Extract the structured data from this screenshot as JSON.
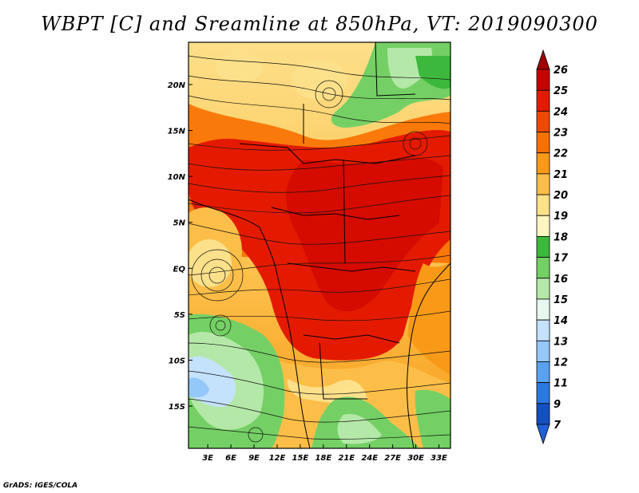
{
  "title": "WBPT [C] and Sreamline at 850hPa, VT: 2019090300",
  "credit": "GrADS: IGES/COLA",
  "map": {
    "lat_labels": [
      "20N",
      "15N",
      "10N",
      "5N",
      "EQ",
      "5S",
      "10S",
      "15S"
    ],
    "lon_labels": [
      "3E",
      "6E",
      "9E",
      "12E",
      "15E",
      "18E",
      "21E",
      "24E",
      "27E",
      "30E",
      "33E"
    ],
    "lat_values": [
      20,
      15,
      10,
      5,
      0,
      -5,
      -10,
      -15
    ],
    "lon_values": [
      3,
      6,
      9,
      12,
      15,
      18,
      21,
      24,
      27,
      30,
      33
    ],
    "lon_range": [
      0.5,
      34.5
    ],
    "lat_range": [
      -19.6,
      24.6
    ]
  },
  "colorbar": {
    "levels": [
      "26",
      "25",
      "24",
      "23",
      "22",
      "21",
      "20",
      "19",
      "18",
      "17",
      "16",
      "15",
      "14",
      "13",
      "12",
      "11",
      "9",
      "7"
    ],
    "colors": [
      "#a00000",
      "#c80000",
      "#e41a00",
      "#f04800",
      "#f87000",
      "#f89a18",
      "#fcbe48",
      "#fde08a",
      "#fff5c0",
      "#3cb83c",
      "#74d064",
      "#b4e8a8",
      "#e6f8f0",
      "#c4e2fc",
      "#94c8f8",
      "#5aa2ee",
      "#2c78e0",
      "#1450c0",
      "#2060d8"
    ]
  }
}
